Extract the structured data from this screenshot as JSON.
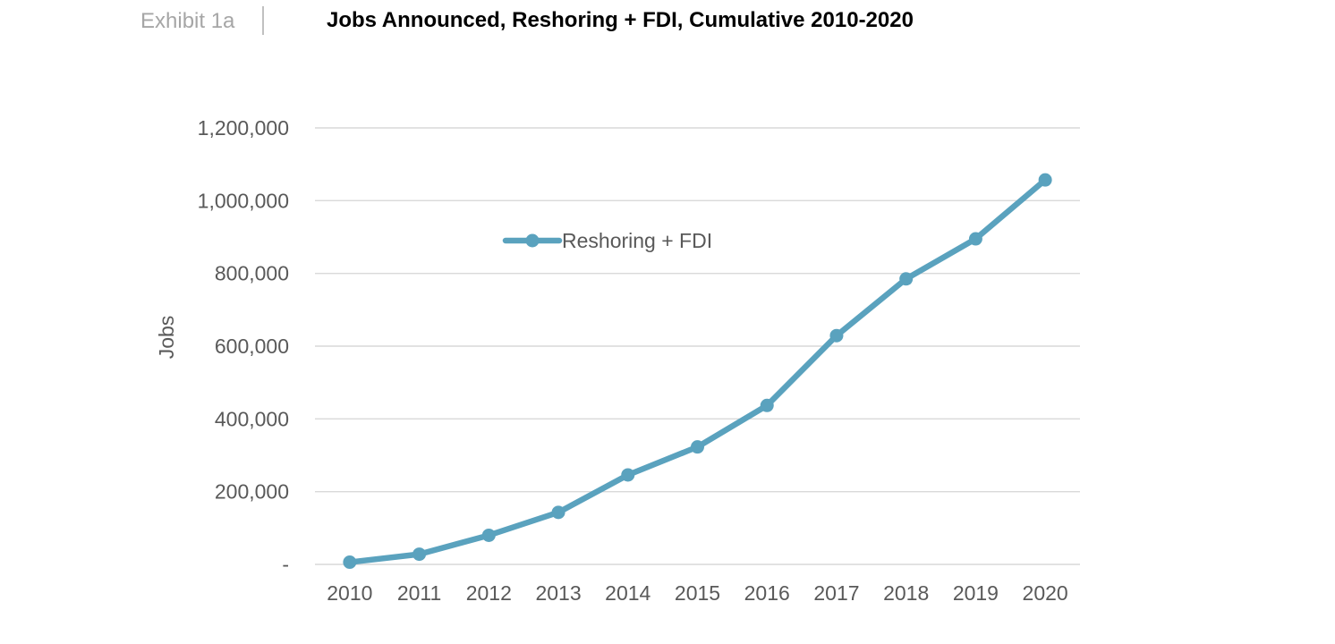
{
  "header": {
    "exhibit_label": "Exhibit 1a",
    "title": "Jobs Announced, Reshoring + FDI, Cumulative 2010-2020"
  },
  "colors": {
    "series_line": "#5AA2BE",
    "gridline": "#D9D9D9",
    "axis_text": "#595959",
    "legend_text": "#595959",
    "title_text": "#000000",
    "exhibit_text": "#A6A6A6",
    "divider": "#C0C0C0",
    "background": "#FFFFFF"
  },
  "chart_data": {
    "type": "line",
    "title": "Jobs Announced, Reshoring + FDI, Cumulative 2010-2020",
    "xlabel": "",
    "ylabel": "Jobs",
    "categories": [
      "2010",
      "2011",
      "2012",
      "2013",
      "2014",
      "2015",
      "2016",
      "2017",
      "2018",
      "2019",
      "2020"
    ],
    "series": [
      {
        "name": "Reshoring + FDI",
        "values": [
          6000,
          28000,
          80000,
          143000,
          246000,
          323000,
          437000,
          629000,
          785000,
          895000,
          1057000
        ]
      }
    ],
    "ylim": [
      0,
      1200000
    ],
    "ytick_step": 200000,
    "ytick_labels": [
      "-",
      "200,000",
      "400,000",
      "600,000",
      "800,000",
      "1,000,000",
      "1,200,000"
    ],
    "grid": "horizontal",
    "legend_position": "inside-upper-center",
    "marker": "circle"
  }
}
